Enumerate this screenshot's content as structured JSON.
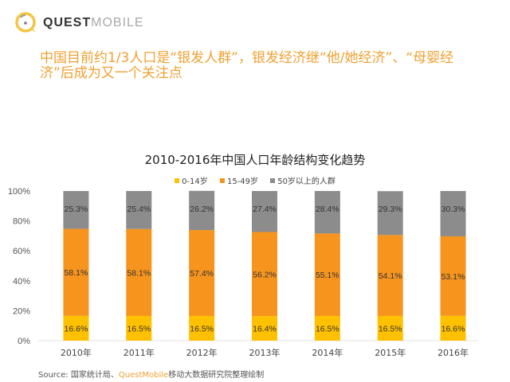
{
  "logo": {
    "bold": "QUEST",
    "light": "MOBILE",
    "icon": "questmobile-logo-icon"
  },
  "headline": "中国目前约1/3人口是“银发人群”，银发经济继“他/她经济”、“母婴经济”后成为又一个关注点",
  "colors": {
    "accent": "#f0a030",
    "series0": "#ffc000",
    "series1": "#f7941d",
    "series2": "#8c8c8c"
  },
  "chart_data": {
    "type": "bar",
    "stacked": true,
    "title": "2010-2016年中国人口年龄结构变化趋势",
    "xlabel": "",
    "ylabel": "",
    "ylim": [
      0,
      100
    ],
    "yticks": [
      "0%",
      "20%",
      "40%",
      "60%",
      "80%",
      "100%"
    ],
    "grid": false,
    "legend_position": "top-center",
    "categories": [
      "2010年",
      "2011年",
      "2012年",
      "2013年",
      "2014年",
      "2015年",
      "2016年"
    ],
    "series": [
      {
        "name": "0-14岁",
        "color": "#ffc000",
        "values": [
          16.6,
          16.5,
          16.5,
          16.4,
          16.5,
          16.5,
          16.6
        ]
      },
      {
        "name": "15-49岁",
        "color": "#f7941d",
        "values": [
          58.1,
          58.1,
          57.4,
          56.2,
          55.1,
          54.1,
          53.1
        ]
      },
      {
        "name": "50岁以上的人群",
        "color": "#8c8c8c",
        "values": [
          25.3,
          25.4,
          26.2,
          27.4,
          28.4,
          29.3,
          30.3
        ]
      }
    ]
  },
  "source": {
    "label": "Source:",
    "text1": "国家统计局、",
    "brand": "QuestMobile",
    "text2": "移动大数据研究院整理绘制"
  }
}
